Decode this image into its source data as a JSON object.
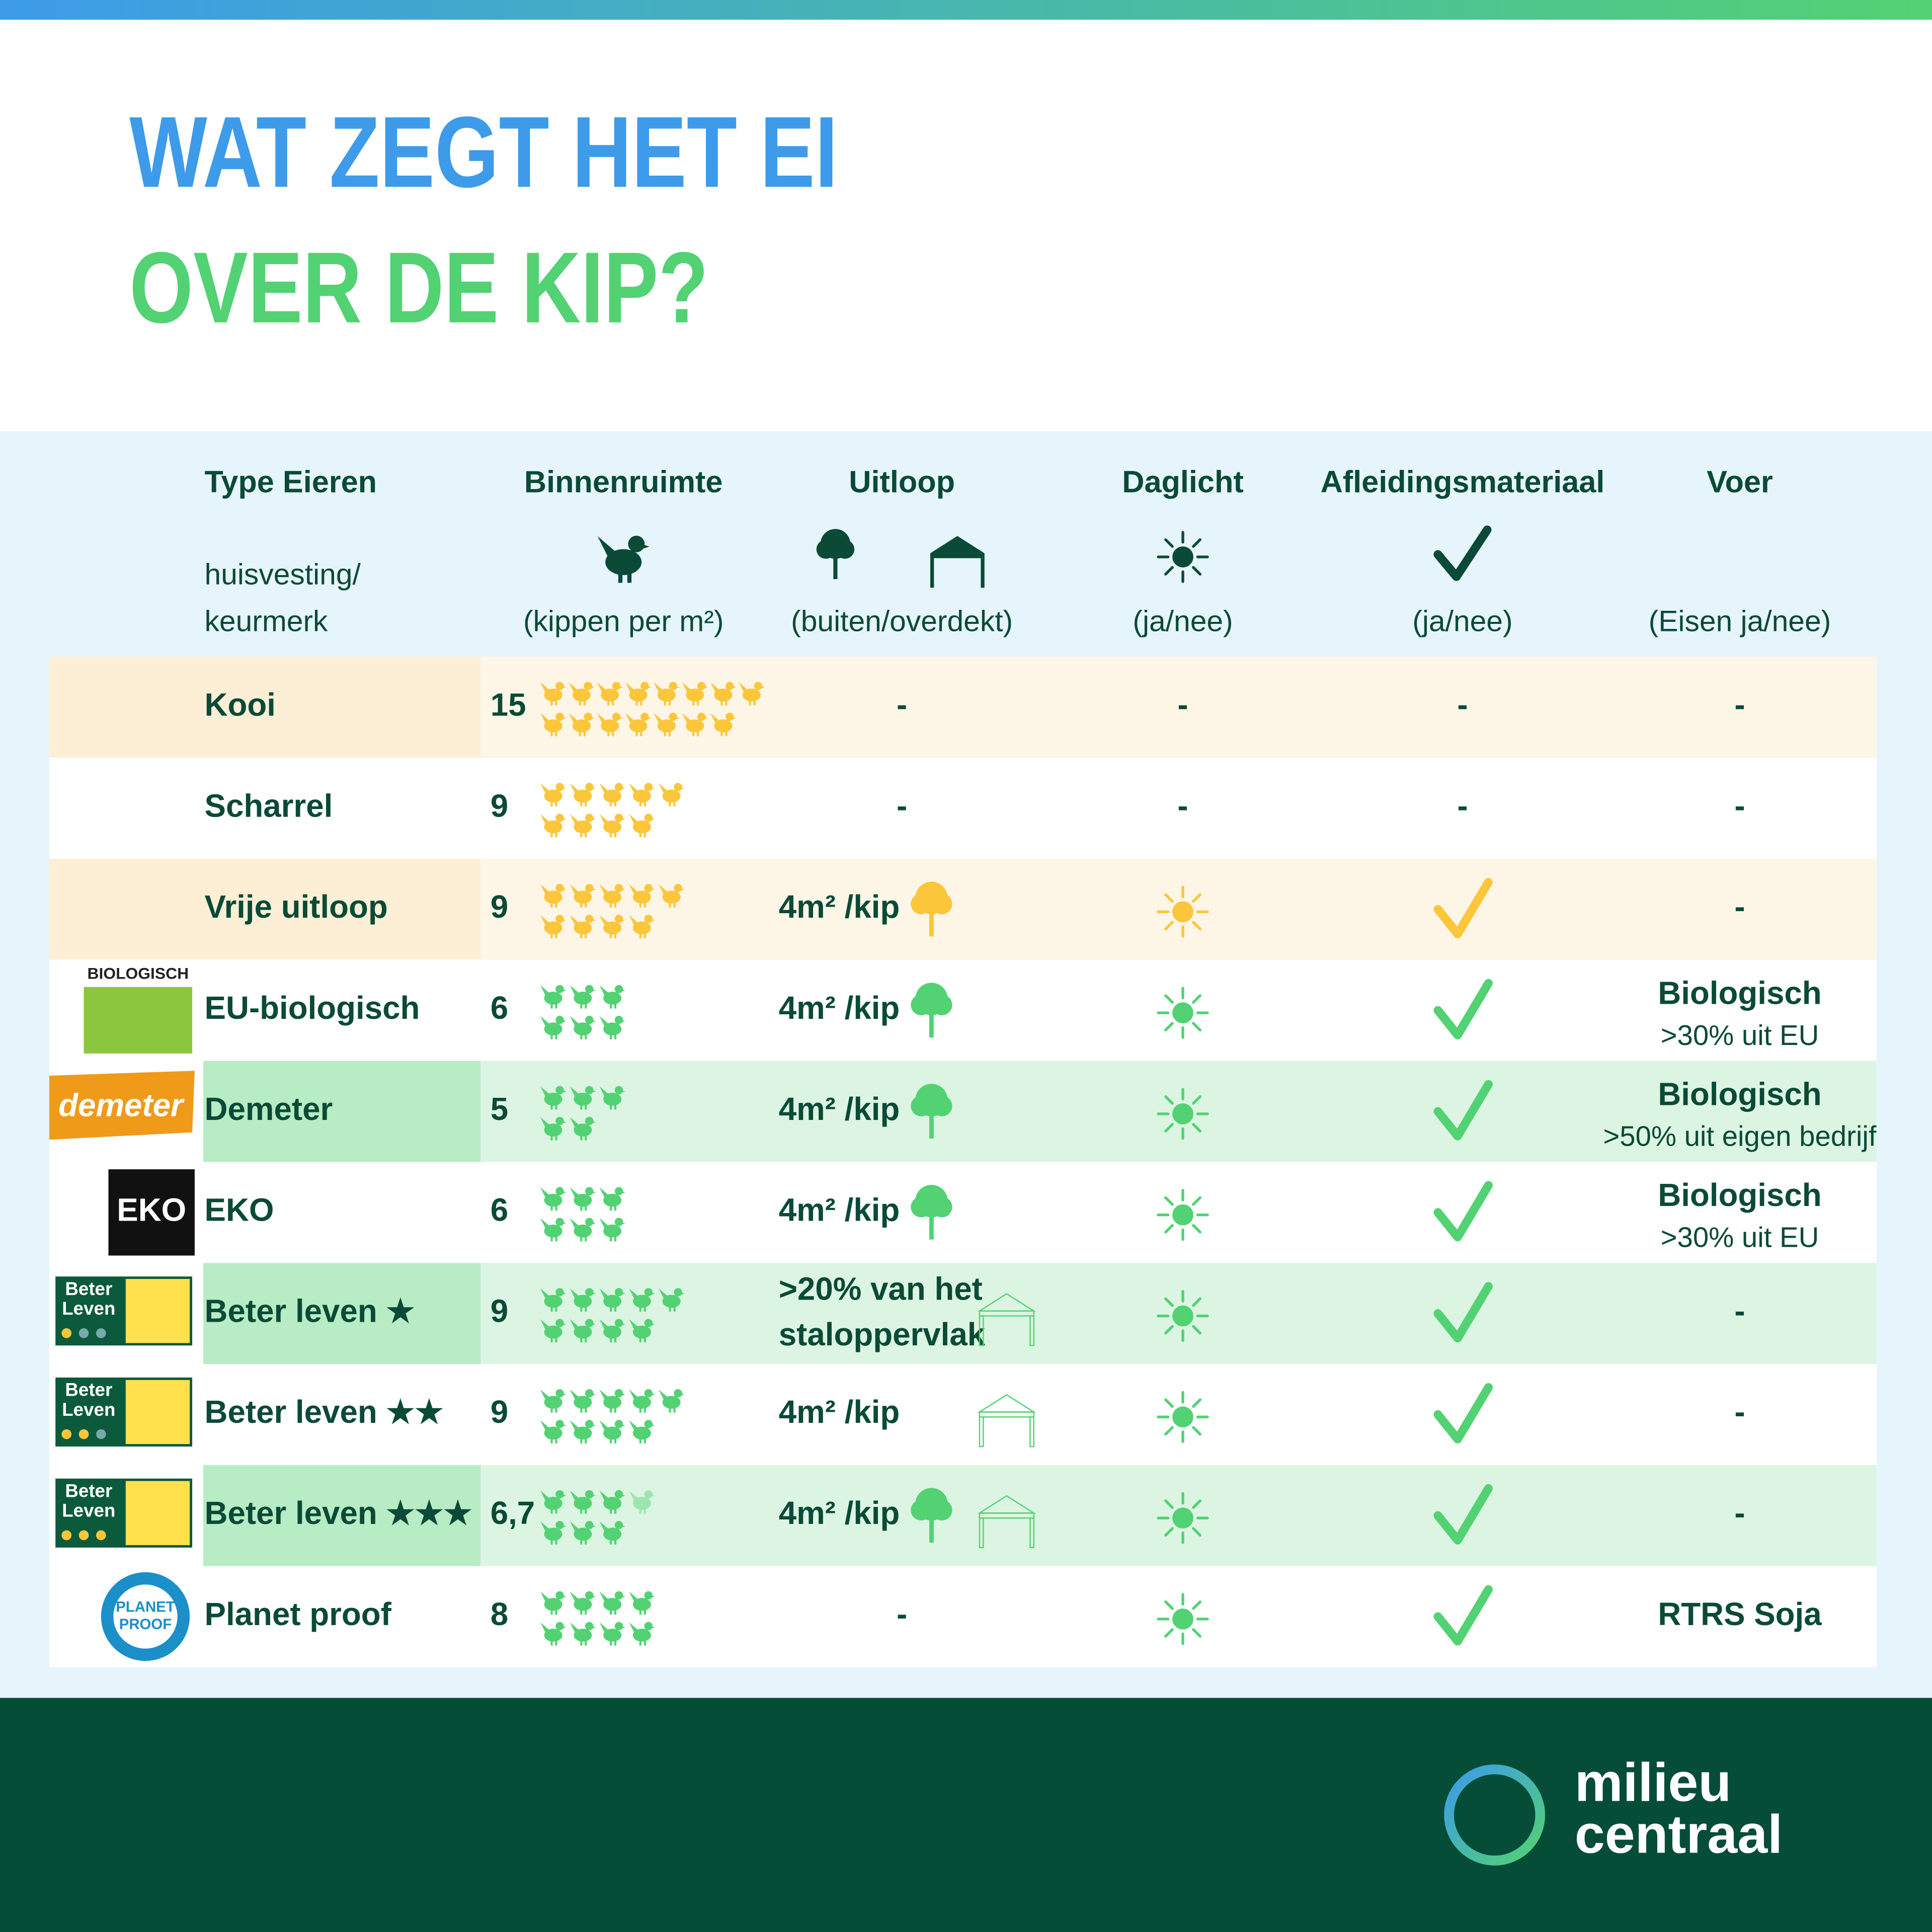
{
  "header": {
    "title_line1": "WAT ZEGT HET EI",
    "title_line2": "OVER DE KIP?"
  },
  "table": {
    "columns": [
      {
        "title": "Type Eieren",
        "subtitle_lines": [
          "huisvesting/",
          "keurmerk"
        ]
      },
      {
        "title": "Binnenruimte",
        "subtitle_lines": [
          "(kippen per m²)"
        ]
      },
      {
        "title": "Uitloop",
        "subtitle_lines": [
          "(buiten/overdekt)"
        ]
      },
      {
        "title": "Daglicht",
        "subtitle_lines": [
          "(ja/nee)"
        ]
      },
      {
        "title": "Afleidingsmateriaal",
        "subtitle_lines": [
          "(ja/nee)"
        ]
      },
      {
        "title": "Voer",
        "subtitle_lines": [
          "(Eisen ja/nee)"
        ]
      }
    ],
    "rows": [
      {
        "name": "Kooi",
        "density": "15",
        "outdoor": [
          "-"
        ],
        "daylight": "-",
        "enrichment": "-",
        "feed": [
          "-"
        ]
      },
      {
        "name": "Scharrel",
        "density": "9",
        "outdoor": [
          "-"
        ],
        "daylight": "-",
        "enrichment": "-",
        "feed": [
          "-"
        ]
      },
      {
        "name": "Vrije uitloop",
        "density": "9",
        "outdoor": [
          "4m² /kip"
        ],
        "feed": [
          "-"
        ]
      },
      {
        "logo": [
          "BIOLOGISCH"
        ],
        "name": "EU-biologisch",
        "density": "6",
        "outdoor": [
          "4m² /kip"
        ],
        "feed": [
          "Biologisch",
          ">30% uit EU"
        ]
      },
      {
        "logo": [
          "demeter"
        ],
        "name": "Demeter",
        "density": "5",
        "outdoor": [
          "4m² /kip"
        ],
        "feed": [
          "Biologisch",
          ">50% uit eigen bedrijf"
        ]
      },
      {
        "logo": [
          "EKO"
        ],
        "name": "EKO",
        "density": "6",
        "outdoor": [
          "4m² /kip"
        ],
        "feed": [
          "Biologisch",
          ">30% uit EU"
        ]
      },
      {
        "logo": [
          "Beter",
          "Leven"
        ],
        "name": "Beter leven ★",
        "density": "9",
        "outdoor": [
          ">20% van het",
          "staloppervlak"
        ],
        "feed": [
          "-"
        ]
      },
      {
        "logo": [
          "Beter",
          "Leven"
        ],
        "name": "Beter leven ★★",
        "density": "9",
        "outdoor": [
          "4m² /kip"
        ],
        "feed": [
          "-"
        ]
      },
      {
        "logo": [
          "Beter",
          "Leven"
        ],
        "name": "Beter leven ★★★",
        "density": "6,7",
        "outdoor": [
          "4m² /kip"
        ],
        "feed": [
          "-"
        ]
      },
      {
        "logo": [
          "PLANET",
          "PROOF"
        ],
        "name": "Planet proof",
        "density": "8",
        "outdoor": [
          "-"
        ],
        "feed": [
          "RTRS Soja"
        ]
      }
    ]
  },
  "footer": {
    "brand": [
      "milieu",
      "centraal"
    ]
  }
}
